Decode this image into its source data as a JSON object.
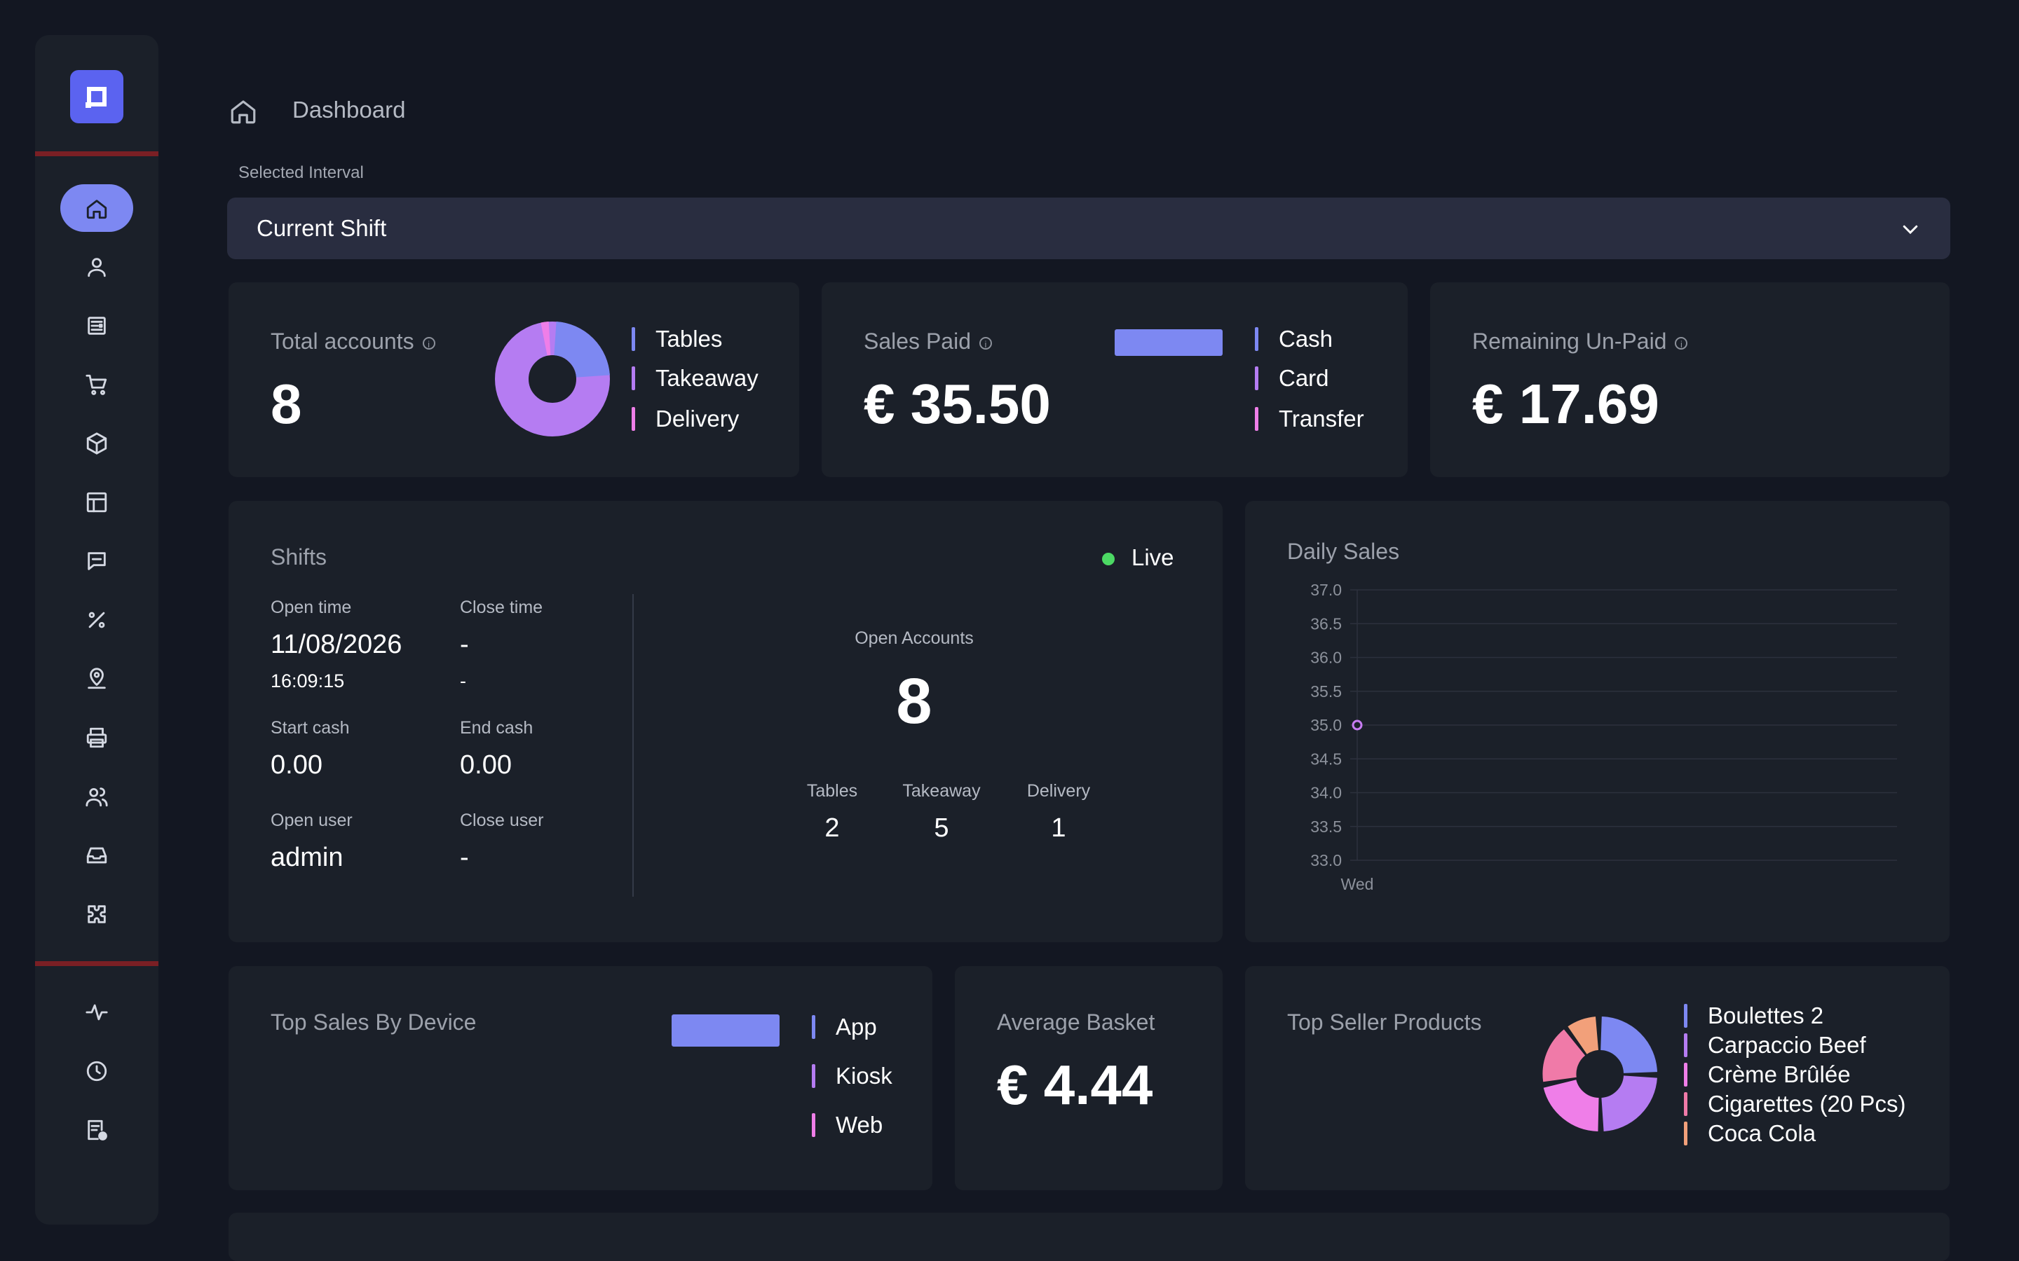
{
  "header": {
    "breadcrumb": "Dashboard",
    "interval_label": "Selected Interval",
    "interval_value": "Current Shift"
  },
  "sidebar": {
    "icons": [
      "home-icon",
      "user-icon",
      "orders-icon",
      "cart-icon",
      "package-icon",
      "table-icon",
      "message-icon",
      "percent-icon",
      "location-icon",
      "printer-icon",
      "users-icon",
      "inbox-icon",
      "puzzle-icon",
      "activity-icon",
      "clock-icon",
      "report-icon"
    ]
  },
  "total_accounts": {
    "title": "Total accounts",
    "value": "8",
    "legend": [
      "Tables",
      "Takeaway",
      "Delivery"
    ],
    "donut": [
      2,
      5,
      1
    ]
  },
  "sales_paid": {
    "title": "Sales Paid",
    "value": "€ 35.50",
    "legend": [
      "Cash",
      "Card",
      "Transfer"
    ]
  },
  "remaining": {
    "title": "Remaining Un-Paid",
    "value": "€ 17.69"
  },
  "shifts": {
    "title": "Shifts",
    "status": "Live",
    "open_time_label": "Open time",
    "open_date": "11/08/2026",
    "open_clock": "16:09:15",
    "close_time_label": "Close time",
    "close_date": "-",
    "close_clock": "-",
    "start_cash_label": "Start cash",
    "start_cash": "0.00",
    "end_cash_label": "End cash",
    "end_cash": "0.00",
    "open_user_label": "Open user",
    "open_user": "admin",
    "close_user_label": "Close user",
    "close_user": "-",
    "open_accounts_label": "Open Accounts",
    "open_accounts": "8",
    "breakdown": [
      {
        "label": "Tables",
        "value": "2"
      },
      {
        "label": "Takeaway",
        "value": "5"
      },
      {
        "label": "Delivery",
        "value": "1"
      }
    ]
  },
  "daily_sales": {
    "title": "Daily Sales"
  },
  "chart_data": {
    "type": "line",
    "title": "Daily Sales",
    "x": [
      "Wed"
    ],
    "values": [
      35.0
    ],
    "ylim": [
      33.0,
      37.0
    ],
    "yticks": [
      "37.0",
      "36.5",
      "36.0",
      "35.5",
      "35.0",
      "34.5",
      "34.0",
      "33.5",
      "33.0"
    ],
    "grid": true
  },
  "top_device": {
    "title": "Top Sales By Device",
    "legend": [
      "App",
      "Kiosk",
      "Web"
    ]
  },
  "avg_basket": {
    "title": "Average Basket",
    "value": "€ 4.44"
  },
  "top_products": {
    "title": "Top Seller Products",
    "legend": [
      "Boulettes 2",
      "Carpaccio Beef",
      "Crème Brûlée",
      "Cigarettes (20 Pcs)",
      "Coca Cola"
    ]
  },
  "colors": {
    "accent": "#7d88f2",
    "purple": "#b57cf2",
    "pink": "#ef7ee8",
    "rose": "#f07aa8",
    "salmon": "#f2a07a",
    "live": "#4cd964"
  }
}
